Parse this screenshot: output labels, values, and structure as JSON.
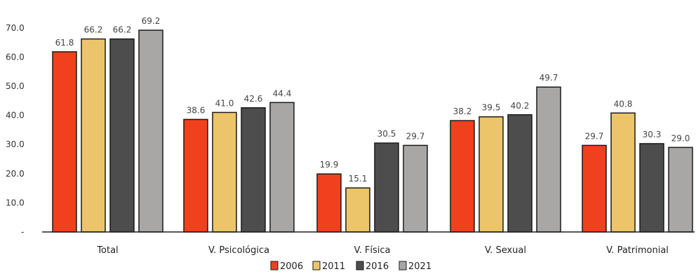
{
  "chart_data": {
    "type": "bar",
    "categories": [
      "Total",
      "V. Psicológica",
      "V. Física",
      "V. Sexual",
      "V. Patrimonial"
    ],
    "series": [
      {
        "name": "2006",
        "color": "#f0401e",
        "values": [
          61.8,
          38.6,
          19.9,
          38.2,
          29.7
        ],
        "labels": [
          "61.8",
          "38.6",
          "19.9",
          "38.2",
          "29.7"
        ]
      },
      {
        "name": "2011",
        "color": "#ecc56b",
        "values": [
          66.2,
          41.0,
          15.1,
          39.5,
          40.8
        ],
        "labels": [
          "66.2",
          "41.0",
          "15.1",
          "39.5",
          "40.8"
        ]
      },
      {
        "name": "2016",
        "color": "#4d4d4d",
        "values": [
          66.2,
          42.6,
          30.5,
          40.2,
          30.3
        ],
        "labels": [
          "66.2",
          "42.6",
          "30.5",
          "40.2",
          "30.3"
        ]
      },
      {
        "name": "2021",
        "color": "#a9a6a6",
        "values": [
          69.2,
          44.4,
          29.7,
          49.7,
          29.0
        ],
        "labels": [
          "69.2",
          "44.4",
          "29.7",
          "49.7",
          "29.0"
        ]
      }
    ],
    "yticks": [
      10,
      20,
      30,
      40,
      50,
      60,
      70
    ],
    "ytick_labels": [
      "10.0",
      "20.0",
      "30.0",
      "40.0",
      "50.0",
      "60.0",
      "70.0"
    ],
    "zero_tick_label": "-",
    "ylim": [
      0,
      70
    ],
    "title": "",
    "xlabel": "",
    "ylabel": "",
    "grid": false,
    "legend_position": "bottom-center"
  }
}
